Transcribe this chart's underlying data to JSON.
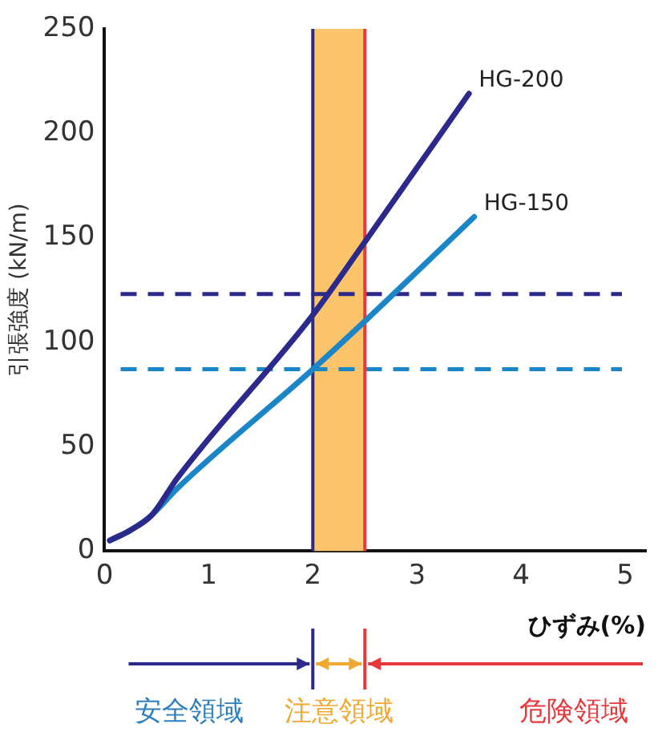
{
  "chart_data": {
    "type": "line",
    "ylabel": "引張強度 (kN/m)",
    "xlabel": "ひずみ(%)",
    "xlim": [
      0,
      5.2
    ],
    "xticks": [
      0,
      1,
      2,
      3,
      4,
      5
    ],
    "ylim": [
      0,
      250
    ],
    "yticks": [
      0,
      50,
      100,
      150,
      200,
      250
    ],
    "series": [
      {
        "name": "HG-200",
        "color": "#2b2a8c",
        "x": [
          0.05,
          0.25,
          0.45,
          0.7,
          2,
          2.5,
          3.5
        ],
        "values": [
          5,
          10,
          17,
          35,
          113,
          148,
          219
        ]
      },
      {
        "name": "HG-150",
        "color": "#1a86c8",
        "x": [
          0.05,
          0.25,
          0.45,
          0.7,
          2,
          2.5,
          3.55
        ],
        "values": [
          5,
          10,
          17,
          30,
          87,
          110,
          160
        ]
      }
    ],
    "ref_lines": [
      {
        "axis": "y",
        "value": 123,
        "color": "#2b2a8c",
        "line_style": "dashed"
      },
      {
        "axis": "y",
        "value": 87,
        "color": "#1a86c8",
        "line_style": "dashed"
      },
      {
        "axis": "x",
        "value": 2,
        "color": "#2b2a8c",
        "line_style": "solid"
      },
      {
        "axis": "x",
        "value": 2.5,
        "color": "#e8383d",
        "line_style": "solid"
      }
    ],
    "bands": [
      {
        "axis": "x",
        "from": 2,
        "to": 2.5,
        "color": "#fcc46a"
      }
    ],
    "annotations": [
      "安全領域",
      "注意領域",
      "危険領域"
    ],
    "grid": false,
    "legend": false,
    "marker": "none",
    "line_style": "solid"
  }
}
